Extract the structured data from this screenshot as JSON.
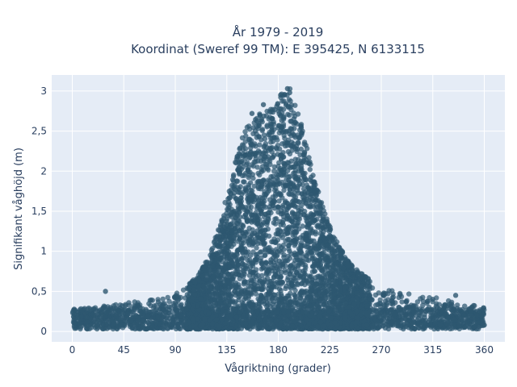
{
  "chart_data": {
    "type": "scatter",
    "title_line1": "År 1979 - 2019",
    "title_line2": "Koordinat (Sweref 99 TM): E 395425, N 6133115",
    "xlabel": "Vågriktning (grader)",
    "ylabel": "Signifikant våghöjd (m)",
    "xlim": [
      -18,
      378
    ],
    "ylim": [
      -0.13,
      3.2
    ],
    "x_ticks": [
      0,
      45,
      90,
      135,
      180,
      225,
      270,
      315,
      360
    ],
    "x_tick_labels": [
      "0",
      "45",
      "90",
      "135",
      "180",
      "225",
      "270",
      "315",
      "360"
    ],
    "y_ticks": [
      0,
      0.5,
      1,
      1.5,
      2,
      2.5,
      3
    ],
    "y_tick_labels": [
      "0",
      "0,5",
      "1",
      "1,5",
      "2",
      "2,5",
      "3"
    ],
    "grid": true,
    "legend": "none",
    "colors": {
      "marker": "#2e5870",
      "plot_background": "#e5ecf6",
      "grid": "#ffffff",
      "text": "#2a3f5f"
    },
    "envelope": {
      "description_units": "upper bound of significant wave height (m) by direction (deg)",
      "x": [
        0,
        20,
        40,
        60,
        80,
        95,
        110,
        120,
        130,
        140,
        150,
        160,
        170,
        180,
        190,
        200,
        210,
        220,
        230,
        240,
        250,
        260,
        270,
        285,
        300,
        320,
        340,
        360
      ],
      "y_max": [
        0.28,
        0.3,
        0.35,
        0.38,
        0.42,
        0.5,
        0.7,
        0.95,
        1.4,
        2.0,
        2.5,
        2.7,
        2.75,
        2.95,
        3.05,
        2.6,
        2.0,
        1.5,
        1.15,
        0.9,
        0.75,
        0.65,
        0.55,
        0.5,
        0.45,
        0.42,
        0.35,
        0.3
      ]
    },
    "notable_points": [
      {
        "x": 29,
        "y": 0.5
      },
      {
        "x": 182,
        "y": 2.95
      },
      {
        "x": 188,
        "y": 3.03
      },
      {
        "x": 190,
        "y": 2.98
      },
      {
        "x": 167,
        "y": 2.83
      },
      {
        "x": 157,
        "y": 2.72
      },
      {
        "x": 315,
        "y": 0.4
      },
      {
        "x": 335,
        "y": 0.45
      },
      {
        "x": 360,
        "y": 0.08
      }
    ]
  }
}
